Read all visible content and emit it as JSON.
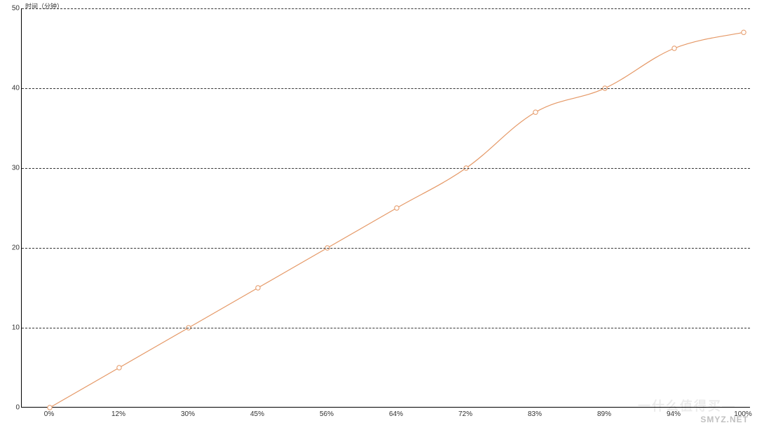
{
  "chart": {
    "type": "line",
    "y_axis_title": "时间（分钟）",
    "title_fontsize": 9,
    "background_color": "#ffffff",
    "grid_color": "#333333",
    "grid_dash": "5,4",
    "axis_color": "#000000",
    "line_color": "#e59866",
    "line_width": 1.2,
    "marker_style": "circle",
    "marker_radius": 3.2,
    "marker_fill": "#ffffff",
    "marker_stroke": "#e59866",
    "marker_stroke_width": 1,
    "tick_fontsize": 10,
    "tick_color": "#333333",
    "ylim": [
      0,
      50
    ],
    "ytick_step": 10,
    "y_ticks": [
      0,
      10,
      20,
      30,
      40,
      50
    ],
    "x_labels": [
      "0%",
      "12%",
      "30%",
      "45%",
      "56%",
      "64%",
      "72%",
      "83%",
      "89%",
      "94%",
      "100%"
    ],
    "y_values": [
      0,
      5,
      10,
      15,
      20,
      25,
      30,
      37,
      40,
      45,
      47
    ],
    "curve_smoothing": 0.18
  },
  "watermark": {
    "text": "一什么值得买—",
    "url": "SMYZ.NET"
  }
}
